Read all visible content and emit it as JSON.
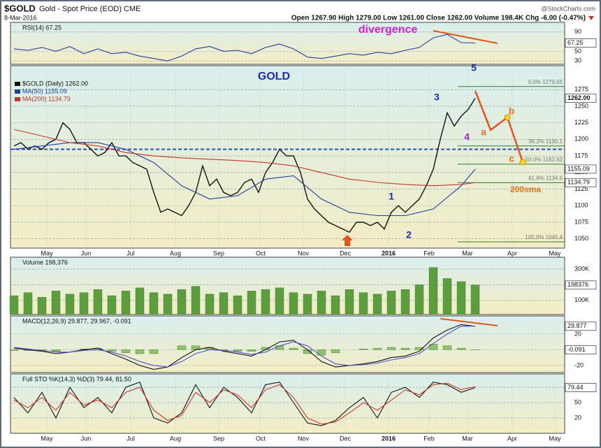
{
  "header": {
    "symbol": "$GOLD",
    "name": "Gold - Spot Price (EOD) CME",
    "date": "8-Mar-2016",
    "quote": "Open 1267.90 High 1279.00 Low 1261.00 Close 1262.00 Volume 198.4K Chg -6.00 (-0.47%)",
    "source": "@StockCharts.com"
  },
  "chart_data": [
    {
      "type": "line",
      "title": "RSI(14) 67.25",
      "xlim": [
        -0.5,
        78.8
      ],
      "ylim": [
        23,
        110
      ],
      "yticks": [
        90,
        50,
        30
      ],
      "grid": true,
      "series": [
        {
          "name": "RSI(14)",
          "color": "#1f3f9f",
          "x": [
            0,
            2,
            4,
            6,
            8,
            10,
            12,
            14,
            16,
            18,
            20,
            22,
            24,
            26,
            28,
            30,
            32,
            34,
            36,
            38,
            40,
            42,
            44,
            46,
            48,
            50,
            52,
            54,
            56,
            58,
            60,
            62,
            64,
            66
          ],
          "values": [
            55,
            52,
            58,
            50,
            60,
            45,
            55,
            45,
            48,
            40,
            35,
            30,
            40,
            55,
            60,
            50,
            52,
            45,
            58,
            65,
            55,
            38,
            35,
            40,
            45,
            42,
            48,
            45,
            52,
            58,
            78,
            85,
            68,
            67.25
          ]
        }
      ],
      "value_boxes": [
        67.25
      ],
      "annotations": [
        {
          "text": "divergence",
          "color": "#d020d0"
        }
      ]
    },
    {
      "type": "line",
      "xlim": [
        -0.5,
        78.8
      ],
      "ylim": [
        1036,
        1311
      ],
      "yticks": [
        1275,
        1250,
        1225,
        1200,
        1175,
        1150,
        1125,
        1100,
        1075,
        1050
      ],
      "grid": true,
      "xticks": [
        {
          "value": 4.7,
          "label": "May"
        },
        {
          "value": 10.3,
          "label": "Jun"
        },
        {
          "value": 16.7,
          "label": "Jul"
        },
        {
          "value": 23.1,
          "label": "Aug"
        },
        {
          "value": 29.3,
          "label": "Sep"
        },
        {
          "value": 35.3,
          "label": "Oct"
        },
        {
          "value": 41.4,
          "label": "Nov"
        },
        {
          "value": 47.4,
          "label": "Dec"
        },
        {
          "value": 53.6,
          "label": "2016"
        },
        {
          "value": 59.4,
          "label": "Feb"
        },
        {
          "value": 64.9,
          "label": "Mar"
        },
        {
          "value": 71.3,
          "label": "Apr"
        },
        {
          "value": 77.4,
          "label": "May"
        }
      ],
      "series": [
        {
          "name": "$GOLD (Daily) 1262.00",
          "color": "#111111",
          "values": [
            1190,
            1195,
            1185,
            1190,
            1185,
            1195,
            1200,
            1225,
            1215,
            1195,
            1195,
            1185,
            1175,
            1180,
            1195,
            1175,
            1175,
            1165,
            1160,
            1155,
            1120,
            1090,
            1095,
            1090,
            1085,
            1100,
            1120,
            1160,
            1130,
            1140,
            1120,
            1115,
            1120,
            1135,
            1140,
            1120,
            1150,
            1165,
            1185,
            1175,
            1175,
            1150,
            1110,
            1095,
            1085,
            1075,
            1070,
            1065,
            1060,
            1075,
            1075,
            1070,
            1075,
            1065,
            1090,
            1100,
            1090,
            1100,
            1110,
            1130,
            1155,
            1200,
            1240,
            1220,
            1235,
            1245,
            1262
          ]
        },
        {
          "name": "MA(50) 1155.09",
          "color": "#1f3f9f",
          "x": [
            0,
            4,
            8,
            12,
            16,
            20,
            24,
            28,
            32,
            36,
            40,
            44,
            48,
            52,
            56,
            60,
            64,
            66
          ],
          "values": [
            1185,
            1190,
            1195,
            1195,
            1185,
            1165,
            1130,
            1110,
            1115,
            1140,
            1145,
            1110,
            1090,
            1085,
            1085,
            1095,
            1130,
            1155.09
          ]
        },
        {
          "name": "MA(200) 1134.79",
          "color": "#c0392b",
          "x": [
            0,
            4,
            8,
            12,
            16,
            20,
            24,
            28,
            32,
            36,
            40,
            44,
            48,
            52,
            56,
            60,
            64,
            66
          ],
          "values": [
            1215,
            1205,
            1195,
            1190,
            1180,
            1175,
            1172,
            1170,
            1168,
            1165,
            1160,
            1150,
            1140,
            1135,
            1132,
            1130,
            1132,
            1134.79
          ]
        }
      ],
      "value_boxes": [
        {
          "value": 1262,
          "label": "1262.00"
        },
        1155.09,
        1134.79
      ],
      "support_line": 1185,
      "fib_levels": [
        {
          "value": 1279.65,
          "label": "0.0% 1279.65"
        },
        {
          "value": 1190.1,
          "label": "38.2% 1190.1"
        },
        {
          "value": 1162.63,
          "label": "50.0% 1162.63"
        },
        {
          "value": 1134.6,
          "label": "61.8% 1134.6"
        },
        {
          "value": 1045.4,
          "label": "100.0% 1045.4"
        }
      ],
      "annotations": [
        {
          "text": "GOLD",
          "color": "#1a2fb0"
        },
        {
          "text": "5",
          "color": "#1a2fb0"
        },
        {
          "text": "3",
          "color": "#1a2fb0"
        },
        {
          "text": "4",
          "color": "#b020d0"
        },
        {
          "text": "1",
          "color": "#1a2fb0"
        },
        {
          "text": "2",
          "color": "#1a2fb0"
        },
        {
          "text": "a",
          "color": "#e8731c"
        },
        {
          "text": "b",
          "color": "#e8731c"
        },
        {
          "text": "c",
          "color": "#e8731c"
        },
        {
          "text": "200sma",
          "color": "#e8731c"
        }
      ]
    },
    {
      "type": "bar",
      "title": "Volume 198,376",
      "xlim": [
        -0.5,
        78.8
      ],
      "ylim": [
        10000,
        376000
      ],
      "grid": true,
      "yticks": [
        {
          "value": 300000,
          "label": "300K"
        },
        {
          "value": 200000,
          "label": "200K"
        },
        {
          "value": 100000,
          "label": "100K"
        }
      ],
      "series": [
        {
          "name": "Volume",
          "color": "#5c9e3e",
          "x": [
            0,
            2,
            4,
            6,
            8,
            10,
            12,
            14,
            16,
            18,
            20,
            22,
            24,
            26,
            28,
            30,
            32,
            34,
            36,
            38,
            40,
            42,
            44,
            46,
            48,
            50,
            52,
            54,
            56,
            58,
            60,
            62,
            64,
            66
          ],
          "values": [
            130000,
            150000,
            120000,
            160000,
            140000,
            150000,
            170000,
            130000,
            160000,
            180000,
            150000,
            140000,
            170000,
            190000,
            140000,
            150000,
            130000,
            160000,
            170000,
            180000,
            150000,
            140000,
            160000,
            130000,
            170000,
            150000,
            140000,
            160000,
            170000,
            200000,
            310000,
            240000,
            220000,
            198376
          ]
        }
      ],
      "value_boxes": [
        198376
      ]
    },
    {
      "type": "line",
      "title": "MACD(12,26,9) 29.877, 29.967, -0.091",
      "xlim": [
        -0.5,
        78.8
      ],
      "ylim": [
        -29,
        43
      ],
      "yticks": [
        20,
        0,
        -20
      ],
      "grid": true,
      "series": [
        {
          "name": "Histogram",
          "type": "bar",
          "color": "#8cc46a",
          "x": [
            0,
            2,
            4,
            6,
            8,
            10,
            12,
            14,
            16,
            18,
            20,
            22,
            24,
            26,
            28,
            30,
            32,
            34,
            36,
            38,
            40,
            42,
            44,
            46,
            48,
            50,
            52,
            54,
            56,
            58,
            60,
            62,
            64,
            66
          ],
          "values": [
            -1,
            -1,
            -1,
            -2,
            0,
            1,
            2,
            -2,
            -4,
            -5,
            -5,
            0,
            5,
            5,
            3,
            -1,
            -2,
            -2,
            3,
            5,
            2,
            -5,
            -7,
            -4,
            0,
            1,
            2,
            3,
            2,
            3,
            7,
            5,
            2,
            -0.091
          ]
        },
        {
          "name": "MACD",
          "color": "#111111",
          "x": [
            0,
            2,
            4,
            6,
            8,
            10,
            12,
            14,
            16,
            18,
            20,
            22,
            24,
            26,
            28,
            30,
            32,
            34,
            36,
            38,
            40,
            42,
            44,
            46,
            48,
            50,
            52,
            54,
            56,
            58,
            60,
            62,
            64,
            66
          ],
          "values": [
            2,
            0,
            -2,
            -5,
            -3,
            0,
            2,
            -5,
            -12,
            -20,
            -25,
            -22,
            -10,
            0,
            3,
            -2,
            -5,
            -8,
            0,
            10,
            12,
            0,
            -15,
            -22,
            -20,
            -18,
            -15,
            -10,
            -8,
            -2,
            15,
            25,
            32,
            29.877
          ]
        },
        {
          "name": "Signal",
          "color": "#5a4fcf",
          "x": [
            0,
            2,
            4,
            6,
            8,
            10,
            12,
            14,
            16,
            18,
            20,
            22,
            24,
            26,
            28,
            30,
            32,
            34,
            36,
            38,
            40,
            42,
            44,
            46,
            48,
            50,
            52,
            54,
            56,
            58,
            60,
            62,
            64,
            66
          ],
          "values": [
            3,
            1,
            -1,
            -3,
            -3,
            -1,
            0,
            -3,
            -8,
            -15,
            -20,
            -22,
            -15,
            -5,
            0,
            -1,
            -3,
            -6,
            -3,
            5,
            10,
            5,
            -8,
            -18,
            -20,
            -19,
            -17,
            -13,
            -10,
            -5,
            8,
            20,
            30,
            29.967
          ]
        }
      ],
      "value_boxes": [
        29.877,
        -0.091
      ]
    },
    {
      "type": "line",
      "title": "Full STO %K(14,3) %D(3) 79.44, 81.50",
      "xlim": [
        -0.5,
        78.8
      ],
      "ylim": [
        -10,
        106
      ],
      "yticks": [
        80,
        50,
        20
      ],
      "grid": true,
      "xticks": [
        {
          "value": 4.7,
          "label": "May"
        },
        {
          "value": 10.3,
          "label": "Jun"
        },
        {
          "value": 16.7,
          "label": "Jul"
        },
        {
          "value": 23.1,
          "label": "Aug"
        },
        {
          "value": 29.3,
          "label": "Sep"
        },
        {
          "value": 35.3,
          "label": "Oct"
        },
        {
          "value": 41.4,
          "label": "Nov"
        },
        {
          "value": 47.4,
          "label": "Dec"
        },
        {
          "value": 53.6,
          "label": "2016"
        },
        {
          "value": 59.4,
          "label": "Feb"
        },
        {
          "value": 64.9,
          "label": "Mar"
        },
        {
          "value": 71.3,
          "label": "Apr"
        },
        {
          "value": 77.4,
          "label": "May"
        }
      ],
      "series": [
        {
          "name": "%K",
          "color": "#111111",
          "x": [
            0,
            2,
            4,
            6,
            8,
            10,
            12,
            14,
            16,
            18,
            20,
            22,
            24,
            26,
            28,
            30,
            32,
            34,
            36,
            38,
            40,
            42,
            44,
            46,
            48,
            50,
            52,
            54,
            56,
            58,
            60,
            62,
            64,
            66
          ],
          "values": [
            60,
            30,
            70,
            20,
            80,
            40,
            60,
            30,
            80,
            90,
            20,
            10,
            30,
            85,
            40,
            80,
            60,
            30,
            85,
            90,
            50,
            10,
            5,
            15,
            40,
            60,
            20,
            70,
            80,
            60,
            90,
            85,
            70,
            79.44
          ]
        },
        {
          "name": "%D",
          "color": "#d0392b",
          "x": [
            0,
            2,
            4,
            6,
            8,
            10,
            12,
            14,
            16,
            18,
            20,
            22,
            24,
            26,
            28,
            30,
            32,
            34,
            36,
            38,
            40,
            42,
            44,
            46,
            48,
            50,
            52,
            54,
            56,
            58,
            60,
            62,
            64,
            66
          ],
          "values": [
            55,
            40,
            60,
            35,
            70,
            45,
            55,
            40,
            70,
            80,
            35,
            15,
            25,
            70,
            50,
            75,
            65,
            40,
            75,
            85,
            60,
            20,
            8,
            12,
            30,
            50,
            35,
            55,
            75,
            65,
            85,
            88,
            75,
            81.5
          ]
        }
      ],
      "value_boxes": [
        79.44
      ]
    }
  ]
}
